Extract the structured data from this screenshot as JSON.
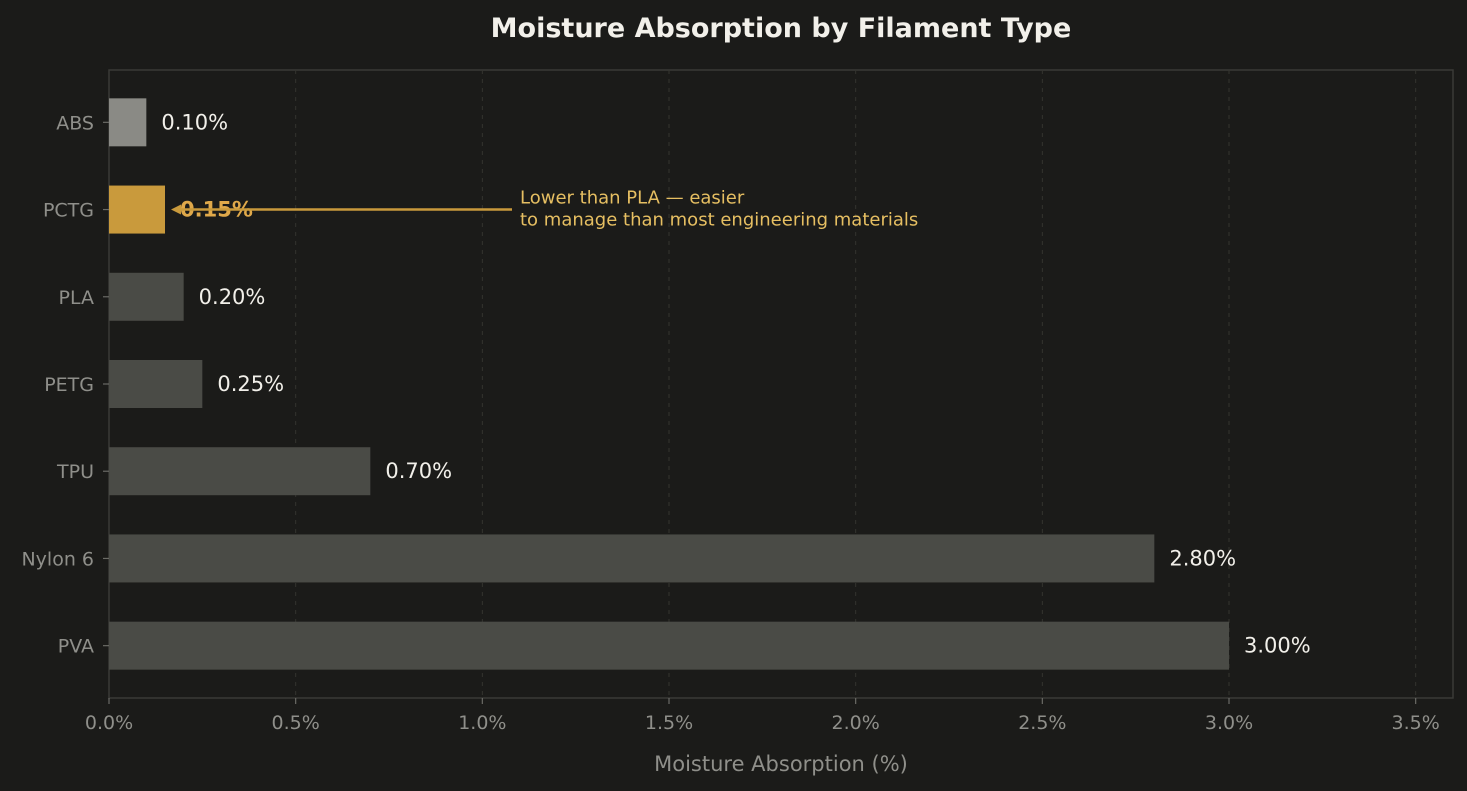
{
  "chart_data": {
    "type": "bar",
    "orientation": "horizontal",
    "title": "Moisture Absorption by Filament Type",
    "xlabel": "Moisture Absorption (%)",
    "ylabel": "",
    "categories": [
      "ABS",
      "PCTG",
      "PLA",
      "PETG",
      "TPU",
      "Nylon 6",
      "PVA"
    ],
    "values": [
      0.1,
      0.15,
      0.2,
      0.25,
      0.7,
      2.8,
      3.0
    ],
    "value_labels": [
      "0.10%",
      "0.15%",
      "0.20%",
      "0.25%",
      "0.70%",
      "2.80%",
      "3.00%"
    ],
    "xlim": [
      0,
      3.6
    ],
    "xticks": [
      0,
      0.5,
      1.0,
      1.5,
      2.0,
      2.5,
      3.0,
      3.5
    ],
    "xtick_labels": [
      "0.0%",
      "0.5%",
      "1.0%",
      "1.5%",
      "2.0%",
      "2.5%",
      "3.0%",
      "3.5%"
    ],
    "grid": "vertical dashed",
    "highlight": "PCTG",
    "annotation": {
      "target": "PCTG",
      "lines": [
        "Lower than PLA — easier",
        "to manage than most engineering materials"
      ]
    },
    "colors": {
      "background": "#1b1b19",
      "default_bar": "#4a4b46",
      "first_bar": "#8a8a85",
      "highlight_bar": "#c99a3c",
      "highlight_label": "#e0a94a",
      "annotation": "#e6bf62"
    }
  }
}
